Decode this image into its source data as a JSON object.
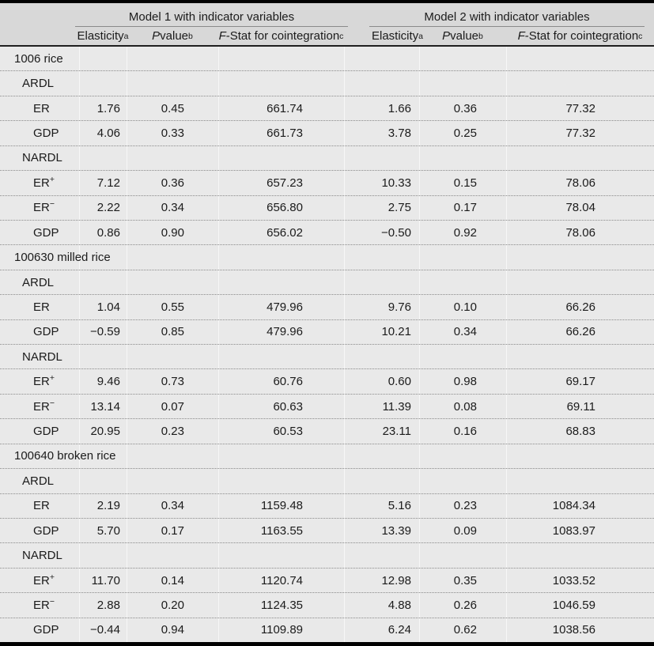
{
  "table": {
    "model_headers": [
      "Model 1 with indicator variables",
      "Model 2 with indicator variables"
    ],
    "column_headers": [
      {
        "name": "elasticity",
        "italic": "",
        "text": "Elasticity",
        "sup": "a"
      },
      {
        "name": "p-value",
        "italic": "P",
        "text": " value",
        "sup": "b"
      },
      {
        "name": "f-stat",
        "italic": "F",
        "text": "-Stat for cointegration",
        "sup": "c"
      }
    ],
    "rows": [
      {
        "type": "section",
        "label": "1006 rice"
      },
      {
        "type": "group",
        "label": "ARDL"
      },
      {
        "type": "data",
        "label": "ER",
        "sup": "",
        "m1": [
          "1.76",
          "0.45",
          "661.74"
        ],
        "m2": [
          "1.66",
          "0.36",
          "77.32"
        ]
      },
      {
        "type": "data",
        "label": "GDP",
        "sup": "",
        "m1": [
          "4.06",
          "0.33",
          "661.73"
        ],
        "m2": [
          "3.78",
          "0.25",
          "77.32"
        ]
      },
      {
        "type": "group",
        "label": "NARDL"
      },
      {
        "type": "data",
        "label": "ER",
        "sup": "+",
        "m1": [
          "7.12",
          "0.36",
          "657.23"
        ],
        "m2": [
          "10.33",
          "0.15",
          "78.06"
        ]
      },
      {
        "type": "data",
        "label": "ER",
        "sup": "−",
        "m1": [
          "2.22",
          "0.34",
          "656.80"
        ],
        "m2": [
          "2.75",
          "0.17",
          "78.04"
        ]
      },
      {
        "type": "data",
        "label": "GDP",
        "sup": "",
        "m1": [
          "0.86",
          "0.90",
          "656.02"
        ],
        "m2": [
          "−0.50",
          "0.92",
          "78.06"
        ]
      },
      {
        "type": "section",
        "label": "100630 milled rice"
      },
      {
        "type": "group",
        "label": "ARDL"
      },
      {
        "type": "data",
        "label": "ER",
        "sup": "",
        "m1": [
          "1.04",
          "0.55",
          "479.96"
        ],
        "m2": [
          "9.76",
          "0.10",
          "66.26"
        ]
      },
      {
        "type": "data",
        "label": "GDP",
        "sup": "",
        "m1": [
          "−0.59",
          "0.85",
          "479.96"
        ],
        "m2": [
          "10.21",
          "0.34",
          "66.26"
        ]
      },
      {
        "type": "group",
        "label": "NARDL"
      },
      {
        "type": "data",
        "label": "ER",
        "sup": "+",
        "m1": [
          "9.46",
          "0.73",
          "60.76"
        ],
        "m2": [
          "0.60",
          "0.98",
          "69.17"
        ]
      },
      {
        "type": "data",
        "label": "ER",
        "sup": "−",
        "m1": [
          "13.14",
          "0.07",
          "60.63"
        ],
        "m2": [
          "11.39",
          "0.08",
          "69.11"
        ]
      },
      {
        "type": "data",
        "label": "GDP",
        "sup": "",
        "m1": [
          "20.95",
          "0.23",
          "60.53"
        ],
        "m2": [
          "23.11",
          "0.16",
          "68.83"
        ]
      },
      {
        "type": "section",
        "label": "100640 broken rice"
      },
      {
        "type": "group",
        "label": "ARDL"
      },
      {
        "type": "data",
        "label": "ER",
        "sup": "",
        "m1": [
          "2.19",
          "0.34",
          "1159.48"
        ],
        "m2": [
          "5.16",
          "0.23",
          "1084.34"
        ]
      },
      {
        "type": "data",
        "label": "GDP",
        "sup": "",
        "m1": [
          "5.70",
          "0.17",
          "1163.55"
        ],
        "m2": [
          "13.39",
          "0.09",
          "1083.97"
        ]
      },
      {
        "type": "group",
        "label": "NARDL"
      },
      {
        "type": "data",
        "label": "ER",
        "sup": "+",
        "m1": [
          "11.70",
          "0.14",
          "1120.74"
        ],
        "m2": [
          "12.98",
          "0.35",
          "1033.52"
        ]
      },
      {
        "type": "data",
        "label": "ER",
        "sup": "−",
        "m1": [
          "2.88",
          "0.20",
          "1124.35"
        ],
        "m2": [
          "4.88",
          "0.26",
          "1046.59"
        ]
      },
      {
        "type": "data",
        "label": "GDP",
        "sup": "",
        "m1": [
          "−0.44",
          "0.94",
          "1109.89"
        ],
        "m2": [
          "6.24",
          "0.62",
          "1038.56"
        ]
      }
    ]
  },
  "colors": {
    "body_background": "#e9e9e9",
    "header_background": "#d8d8d8",
    "heavy_border": "#000000",
    "header_rule": "#1f1f1f",
    "spanner_rule": "#8a8a8a",
    "dotted_separator": "#8a8a8a",
    "text": "#1b1b1b"
  }
}
